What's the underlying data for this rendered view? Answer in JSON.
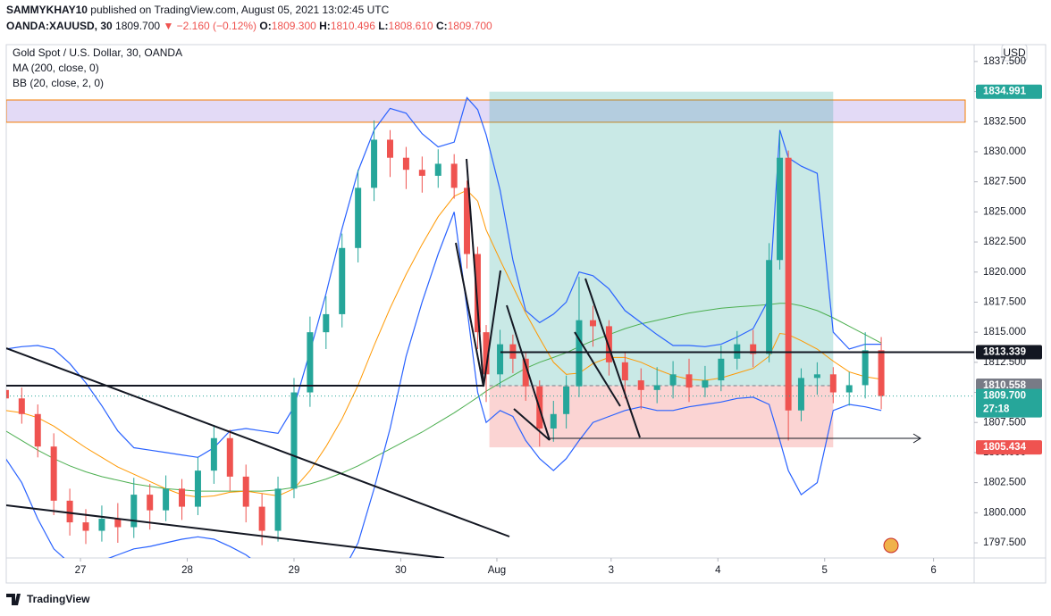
{
  "header": {
    "author": "SAMMYKHAY10",
    "published": "published on TradingView.com, August 05, 2021 13:02:45 UTC",
    "symbol": "OANDA:XAUUSD, 30",
    "last": "1809.700",
    "change": "▼ −2.160 (−0.12%)",
    "ohlc": [
      {
        "k": "O:",
        "v": "1809.300"
      },
      {
        "k": "H:",
        "v": "1810.496"
      },
      {
        "k": "L:",
        "v": "1808.610"
      },
      {
        "k": "C:",
        "v": "1809.700"
      }
    ]
  },
  "footer": {
    "brand": "TradingView"
  },
  "chart_data": {
    "type": "candlestick",
    "title": "Gold Spot / U.S. Dollar, 30, OANDA",
    "currency": "USD",
    "xlim": [
      -0.695,
      8.37
    ],
    "ylim": [
      1796.24,
      1838.9
    ],
    "xticks": [
      {
        "value": 0,
        "label": "27"
      },
      {
        "value": 1,
        "label": "28"
      },
      {
        "value": 2,
        "label": "29"
      },
      {
        "value": 3,
        "label": "30"
      },
      {
        "value": 3.9,
        "label": "Aug"
      },
      {
        "value": 4.97,
        "label": "3"
      },
      {
        "value": 5.97,
        "label": "4"
      },
      {
        "value": 6.97,
        "label": "5"
      },
      {
        "value": 7.99,
        "label": "6"
      }
    ],
    "yticks": [
      {
        "value": 1797.5,
        "label": "1797.500"
      },
      {
        "value": 1800,
        "label": "1800.000"
      },
      {
        "value": 1802.5,
        "label": "1802.500"
      },
      {
        "value": 1805,
        "label": "1805.000"
      },
      {
        "value": 1807.5,
        "label": "1807.500"
      },
      {
        "value": 1810,
        "label": "1810.000"
      },
      {
        "value": 1812.5,
        "label": "1812.500"
      },
      {
        "value": 1815,
        "label": "1815.000"
      },
      {
        "value": 1817.5,
        "label": "1817.500"
      },
      {
        "value": 1820,
        "label": "1820.000"
      },
      {
        "value": 1822.5,
        "label": "1822.500"
      },
      {
        "value": 1825,
        "label": "1825.000"
      },
      {
        "value": 1827.5,
        "label": "1827.500"
      },
      {
        "value": 1830,
        "label": "1830.000"
      },
      {
        "value": 1832.5,
        "label": "1832.500"
      },
      {
        "value": 1835,
        "label": "1835.000"
      },
      {
        "value": 1837.5,
        "label": "1837.500"
      }
    ],
    "candles": {
      "up_color": "#26a69a",
      "down_color": "#ef5350",
      "x": [
        -0.7,
        -0.55,
        -0.4,
        -0.25,
        -0.1,
        0.05,
        0.2,
        0.35,
        0.5,
        0.65,
        0.8,
        0.95,
        1.1,
        1.25,
        1.4,
        1.55,
        1.7,
        1.85,
        2.0,
        2.15,
        2.3,
        2.45,
        2.6,
        2.75,
        2.9,
        3.05,
        3.2,
        3.35,
        3.5,
        3.62,
        3.72,
        3.8,
        3.93,
        4.05,
        4.17,
        4.3,
        4.43,
        4.55,
        4.67,
        4.8,
        4.95,
        5.1,
        5.25,
        5.4,
        5.55,
        5.7,
        5.85,
        6.0,
        6.15,
        6.3,
        6.45,
        6.55,
        6.63,
        6.75,
        6.9,
        7.05,
        7.2,
        7.35,
        7.5
      ],
      "open": [
        1810.2,
        1809.5,
        1808.2,
        1805.5,
        1801,
        1799.2,
        1798.5,
        1799.5,
        1798.8,
        1801.5,
        1800.2,
        1802,
        1800.5,
        1803.5,
        1806.2,
        1803,
        1800.5,
        1798.5,
        1802,
        1810,
        1815,
        1816.5,
        1822,
        1827,
        1831,
        1829.5,
        1828.5,
        1828,
        1829,
        1827,
        1821.5,
        1815,
        1811.5,
        1814,
        1812.8,
        1810.5,
        1807,
        1808.2,
        1810.5,
        1816,
        1815.5,
        1812.5,
        1811,
        1810.2,
        1810.6,
        1811.5,
        1810.4,
        1811,
        1812.8,
        1814,
        1813.2,
        1821,
        1829.5,
        1808.5,
        1811.2,
        1811.5,
        1810,
        1810.6,
        1813.5
      ],
      "high": [
        1811.3,
        1810.4,
        1809,
        1806.6,
        1802,
        1800.3,
        1800.6,
        1800.8,
        1802.9,
        1802.4,
        1803.1,
        1802.8,
        1804.6,
        1807.3,
        1806.9,
        1804,
        1801.6,
        1803,
        1811.2,
        1816.3,
        1818,
        1823.2,
        1828.5,
        1832.6,
        1831.8,
        1830.4,
        1829.6,
        1830.2,
        1829.8,
        1827.6,
        1822.1,
        1815.6,
        1815.2,
        1814.8,
        1813.3,
        1811,
        1809.3,
        1811.4,
        1819.6,
        1817.2,
        1816,
        1813.4,
        1812,
        1812.1,
        1812.6,
        1812.8,
        1812.2,
        1813.9,
        1815.1,
        1815.2,
        1822.4,
        1831.6,
        1830.1,
        1812,
        1812.5,
        1812.1,
        1811.7,
        1815,
        1814.6
      ],
      "low": [
        1808.6,
        1807.4,
        1804.6,
        1799.8,
        1798.1,
        1797.4,
        1797.6,
        1797.5,
        1797.9,
        1798.6,
        1799.3,
        1799.4,
        1799.8,
        1802.4,
        1801.8,
        1799.2,
        1797.3,
        1797.6,
        1801.2,
        1808.8,
        1813.6,
        1815.4,
        1820.8,
        1825.9,
        1827.9,
        1826.9,
        1826.6,
        1827,
        1826.1,
        1820.3,
        1813.6,
        1809.2,
        1810.4,
        1811.6,
        1809.3,
        1805.5,
        1805.9,
        1807,
        1809.6,
        1813.8,
        1811.4,
        1809.5,
        1808.6,
        1809.1,
        1809.5,
        1809.2,
        1809.6,
        1810.1,
        1811.9,
        1812.1,
        1812.5,
        1820.2,
        1806,
        1807.6,
        1809.8,
        1809.1,
        1808.9,
        1809.5,
        1808.6
      ],
      "close": [
        1809.5,
        1808.2,
        1805.5,
        1801,
        1799.2,
        1798.5,
        1799.5,
        1798.8,
        1801.5,
        1800.2,
        1802,
        1800.5,
        1803.5,
        1806.2,
        1803,
        1800.5,
        1798.5,
        1802,
        1810,
        1815,
        1816.5,
        1822,
        1827,
        1831,
        1829.5,
        1828.5,
        1828,
        1829,
        1827,
        1821.5,
        1815,
        1811.5,
        1814,
        1812.8,
        1810.5,
        1807,
        1808.2,
        1810.5,
        1816,
        1815.5,
        1812.5,
        1811,
        1810.2,
        1810.6,
        1811.5,
        1810.4,
        1811,
        1812.8,
        1814,
        1813.2,
        1821,
        1829.5,
        1808.5,
        1811.2,
        1811.5,
        1810,
        1810.6,
        1813.5,
        1809.7
      ]
    },
    "indicators": [
      {
        "name": "MA (200, close, 0)",
        "color": "#4caf50",
        "values": [
          1806.8,
          1806.0,
          1805.2,
          1804.5,
          1803.9,
          1803.4,
          1803.0,
          1802.7,
          1802.4,
          1802.2,
          1802.0,
          1801.9,
          1801.8,
          1801.8,
          1801.8,
          1801.8,
          1801.8,
          1801.9,
          1802.1,
          1802.4,
          1802.8,
          1803.3,
          1803.9,
          1804.6,
          1805.3,
          1806.0,
          1806.7,
          1807.5,
          1808.3,
          1809.0,
          1809.6,
          1810.1,
          1810.8,
          1811.4,
          1812.0,
          1812.5,
          1812.9,
          1813.3,
          1813.8,
          1814.3,
          1814.8,
          1815.3,
          1815.7,
          1816.0,
          1816.3,
          1816.6,
          1816.8,
          1817.0,
          1817.1,
          1817.2,
          1817.3,
          1817.4,
          1817.4,
          1817.2,
          1816.8,
          1816.2,
          1815.5,
          1814.8,
          1814.1
        ]
      },
      {
        "name": "BB (20, close, 2, 0)",
        "basis_color": "#ff9800",
        "band_color": "#2962ff",
        "basis": [
          1808.5,
          1808.3,
          1807.9,
          1807.2,
          1806.3,
          1805.4,
          1804.6,
          1803.8,
          1803.2,
          1802.6,
          1802.0,
          1801.5,
          1801.3,
          1801.4,
          1801.7,
          1801.8,
          1801.6,
          1801.4,
          1802.0,
          1803.5,
          1805.5,
          1807.8,
          1810.6,
          1813.9,
          1817.0,
          1819.8,
          1822.3,
          1824.6,
          1826.3,
          1826.8,
          1825.9,
          1823.5,
          1821.0,
          1818.8,
          1816.6,
          1814.5,
          1812.5,
          1811.5,
          1811.6,
          1812.4,
          1812.9,
          1812.9,
          1812.5,
          1811.9,
          1811.4,
          1811.1,
          1811.0,
          1811.2,
          1811.6,
          1812.0,
          1813.0,
          1814.9,
          1814.8,
          1814.3,
          1813.6,
          1812.6,
          1811.7,
          1811.3,
          1811.1
        ],
        "upper": [
          1813.6,
          1813.8,
          1813.9,
          1813.6,
          1812.4,
          1810.8,
          1808.9,
          1806.8,
          1805.4,
          1805.2,
          1805.0,
          1804.8,
          1804.6,
          1805.4,
          1806.8,
          1807.0,
          1806.8,
          1806.6,
          1808.8,
          1813.4,
          1818.2,
          1823.6,
          1828.4,
          1831.8,
          1833.6,
          1833.2,
          1831.5,
          1830.4,
          1830.8,
          1834.5,
          1833.5,
          1831.4,
          1826.8,
          1821.0,
          1816.8,
          1815.8,
          1816.5,
          1817.5,
          1820.0,
          1819.7,
          1818.6,
          1816.8,
          1815.8,
          1814.8,
          1813.9,
          1813.9,
          1813.8,
          1814.0,
          1814.6,
          1815.3,
          1817.8,
          1831.8,
          1829.5,
          1828.8,
          1828.2,
          1815.0,
          1813.6,
          1814.0,
          1814.0
        ],
        "lower": [
          1804.5,
          1802.5,
          1799.5,
          1797.0,
          1795.8,
          1795.5,
          1796.0,
          1796.5,
          1797.0,
          1797.2,
          1797.5,
          1797.8,
          1798.0,
          1797.8,
          1797.2,
          1796.5,
          1795.5,
          1795.0,
          1795.2,
          1794.5,
          1794.0,
          1795.0,
          1797.5,
          1802.0,
          1807.0,
          1813.0,
          1817.5,
          1821.5,
          1825.0,
          1817.0,
          1810.0,
          1807.5,
          1808.5,
          1808.0,
          1806.0,
          1804.5,
          1803.5,
          1804.5,
          1806.0,
          1807.5,
          1808.0,
          1808.5,
          1808.8,
          1808.5,
          1808.5,
          1808.8,
          1809.0,
          1809.2,
          1809.5,
          1809.6,
          1809.0,
          1806.0,
          1803.5,
          1801.5,
          1802.5,
          1808.5,
          1809.0,
          1808.8,
          1808.5
        ]
      }
    ],
    "zone": {
      "low": 1832.45,
      "high": 1834.3,
      "color": "#e3daf6",
      "border": "#f57c00"
    },
    "position": {
      "x": [
        3.83,
        7.05
      ],
      "entry": 1810.558,
      "target": 1834.991,
      "stop": 1805.434,
      "profit_color": "#26a69a",
      "loss_color": "#ef5350",
      "entry_color": "#787b86"
    },
    "levels": [
      {
        "value": 1813.339,
        "color": "#131722"
      }
    ],
    "last": {
      "value": 1809.7,
      "label": "1809.700",
      "countdown": "27:18",
      "color": "#26a69a"
    }
  }
}
